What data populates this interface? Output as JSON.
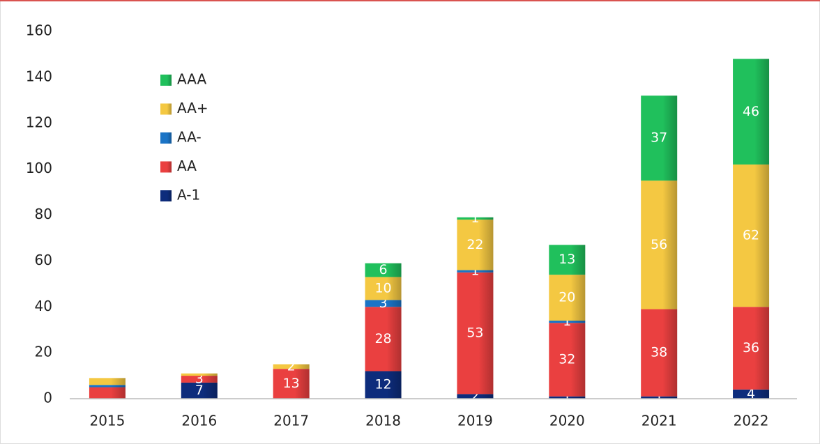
{
  "chart_data": {
    "type": "stacked_bar",
    "categories": [
      "2015",
      "2016",
      "2017",
      "2018",
      "2019",
      "2020",
      "2021",
      "2022"
    ],
    "series": [
      {
        "name": "A-1",
        "color": "#0d2c7c",
        "values": [
          0,
          7,
          0,
          12,
          2,
          1,
          1,
          4
        ],
        "value_labels": [
          null,
          "7",
          null,
          "12",
          "2",
          "1",
          "1",
          "4"
        ]
      },
      {
        "name": "AA",
        "color": "#ea4040",
        "values": [
          5,
          3,
          13,
          28,
          53,
          32,
          38,
          36
        ],
        "value_labels": [
          null,
          "3",
          "13",
          "28",
          "53",
          "32",
          "38",
          "36"
        ]
      },
      {
        "name": "AA-",
        "color": "#1b74c6",
        "values": [
          1,
          0,
          0,
          3,
          1,
          1,
          0,
          0
        ],
        "value_labels": [
          null,
          null,
          null,
          "3",
          "1",
          "1",
          null,
          null
        ]
      },
      {
        "name": "AA+",
        "color": "#f4c842",
        "values": [
          3,
          1,
          2,
          10,
          22,
          20,
          56,
          62
        ],
        "value_labels": [
          null,
          null,
          "2",
          "10",
          "22",
          "20",
          "56",
          "62"
        ]
      },
      {
        "name": "AAA",
        "color": "#20c05c",
        "values": [
          0,
          0,
          0,
          6,
          1,
          13,
          37,
          46
        ],
        "value_labels": [
          null,
          null,
          null,
          "6",
          "1",
          "13",
          "37",
          "46"
        ]
      }
    ],
    "ylim": [
      0,
      160
    ],
    "yticks": [
      0,
      20,
      40,
      60,
      80,
      100,
      120,
      140,
      160
    ],
    "grid": false,
    "legend": "upper left"
  }
}
